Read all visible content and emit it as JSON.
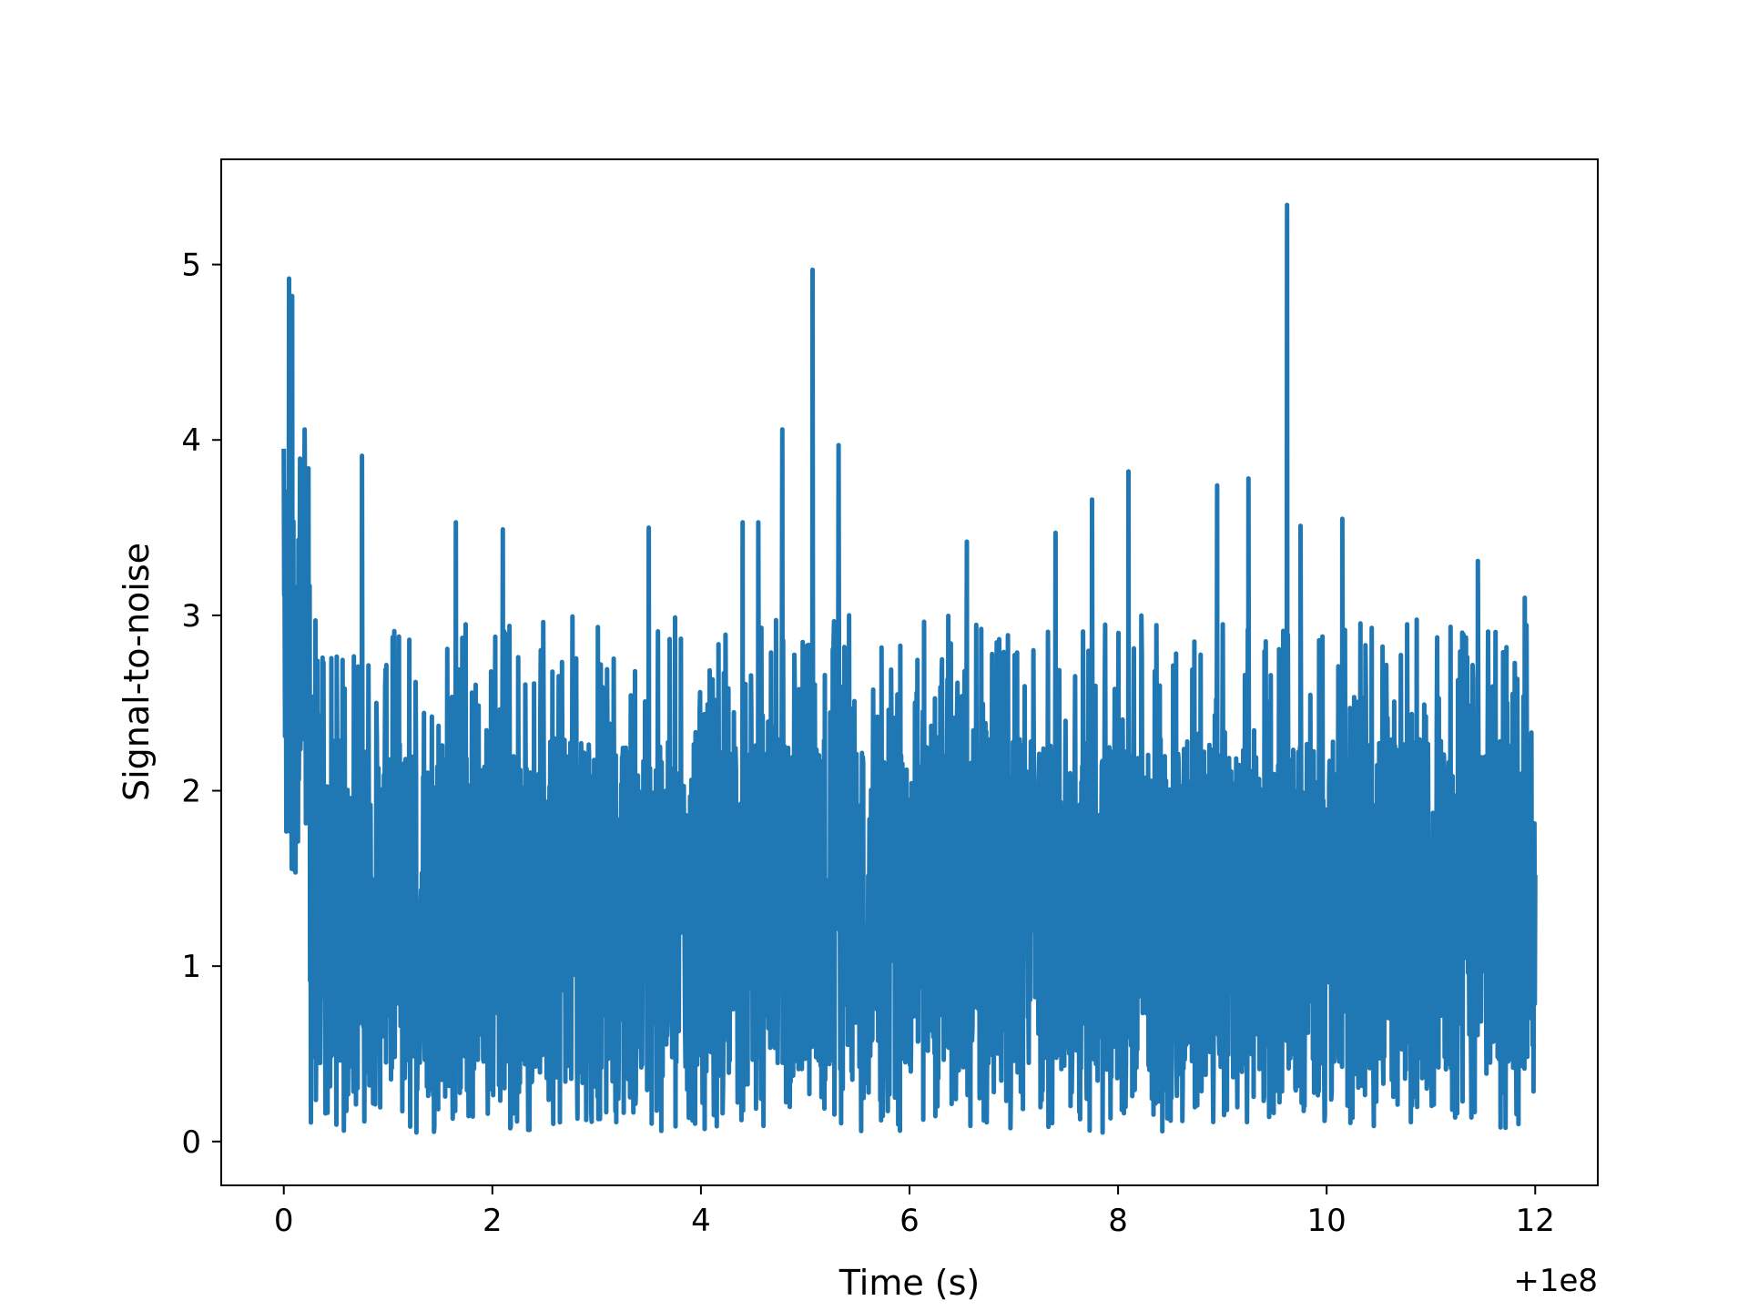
{
  "chart_data": {
    "type": "line",
    "title": "",
    "xlabel": "Time (s)",
    "ylabel": "Signal-to-noise",
    "x_offset_label": "+1e8",
    "xlim": [
      -0.6,
      12.6
    ],
    "ylim": [
      -0.25,
      5.6
    ],
    "x_ticks": [
      0,
      2,
      4,
      6,
      8,
      10,
      12
    ],
    "x_tick_labels": [
      "0",
      "2",
      "4",
      "6",
      "8",
      "10",
      "12"
    ],
    "y_ticks": [
      0,
      1,
      2,
      3,
      4,
      5
    ],
    "y_tick_labels": [
      "0",
      "1",
      "2",
      "3",
      "4",
      "5"
    ],
    "grid": false,
    "legend": "none",
    "color": "#1f77b4",
    "series": [
      {
        "x_range": [
          0,
          12
        ],
        "baseline_mean": 1.25,
        "peaks": [
          {
            "x": 0.0,
            "y": 3.95
          },
          {
            "x": 0.05,
            "y": 4.92
          },
          {
            "x": 0.08,
            "y": 4.82
          },
          {
            "x": 0.2,
            "y": 4.06
          },
          {
            "x": 0.75,
            "y": 3.91
          },
          {
            "x": 1.65,
            "y": 3.53
          },
          {
            "x": 2.1,
            "y": 3.49
          },
          {
            "x": 3.5,
            "y": 3.5
          },
          {
            "x": 4.4,
            "y": 3.53
          },
          {
            "x": 4.55,
            "y": 3.53
          },
          {
            "x": 4.78,
            "y": 4.06
          },
          {
            "x": 5.07,
            "y": 4.97
          },
          {
            "x": 5.32,
            "y": 3.97
          },
          {
            "x": 6.55,
            "y": 3.42
          },
          {
            "x": 7.4,
            "y": 3.47
          },
          {
            "x": 7.75,
            "y": 3.66
          },
          {
            "x": 8.1,
            "y": 3.82
          },
          {
            "x": 8.95,
            "y": 3.74
          },
          {
            "x": 9.25,
            "y": 3.78
          },
          {
            "x": 9.62,
            "y": 5.34
          },
          {
            "x": 9.75,
            "y": 3.51
          },
          {
            "x": 10.15,
            "y": 3.55
          },
          {
            "x": 11.45,
            "y": 3.31
          },
          {
            "x": 11.9,
            "y": 3.1
          }
        ]
      }
    ]
  }
}
